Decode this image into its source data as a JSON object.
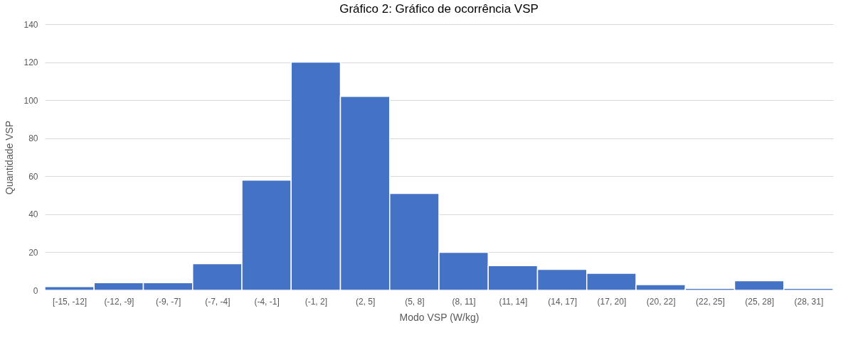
{
  "chart_data": {
    "type": "bar",
    "title": "Gráfico 2: Gráfico de ocorrência VSP",
    "xlabel": "Modo VSP (W/kg)",
    "ylabel": "Quantidade VSP",
    "categories": [
      "[-15, -12]",
      "(-12, -9]",
      "(-9, -7]",
      "(-7, -4]",
      "(-4, -1]",
      "(-1, 2]",
      "(2, 5]",
      "(5, 8]",
      "(8, 11]",
      "(11, 14]",
      "(14, 17]",
      "(17, 20]",
      "(20, 22]",
      "(22, 25]",
      "(25, 28]",
      "(28, 31]"
    ],
    "values": [
      2,
      4,
      4,
      14,
      58,
      120,
      102,
      51,
      20,
      13,
      11,
      9,
      3,
      1,
      5,
      1
    ],
    "color": "#4472c4",
    "ylim": [
      0,
      140
    ],
    "yticks": [
      0,
      20,
      40,
      60,
      80,
      100,
      120,
      140
    ],
    "grid": "y"
  }
}
